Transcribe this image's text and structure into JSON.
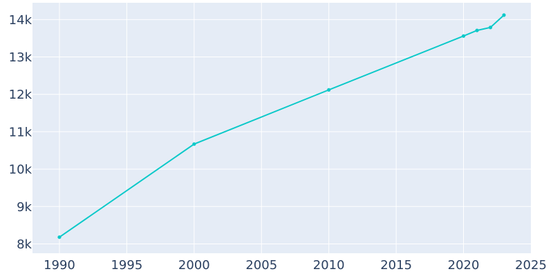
{
  "chart_data": {
    "type": "line",
    "title": "",
    "xlabel": "",
    "ylabel": "",
    "grid": true,
    "xlim": [
      1988,
      2025
    ],
    "ylim": [
      7750,
      14450
    ],
    "x_ticks": [
      1990,
      1995,
      2000,
      2005,
      2010,
      2015,
      2020,
      2025
    ],
    "x_tick_labels": [
      "1990",
      "1995",
      "2000",
      "2005",
      "2010",
      "2015",
      "2020",
      "2025"
    ],
    "y_ticks": [
      8000,
      9000,
      10000,
      11000,
      12000,
      13000,
      14000
    ],
    "y_tick_labels": [
      "8k",
      "9k",
      "10k",
      "11k",
      "12k",
      "13k",
      "14k"
    ],
    "series": [
      {
        "color": "#0cc9c9",
        "x": [
          1990,
          2000,
          2010,
          2020,
          2021,
          2022,
          2023
        ],
        "values": [
          8180,
          10670,
          12120,
          13560,
          13710,
          13790,
          14120
        ]
      }
    ]
  },
  "colors": {
    "plot_background": "#e5ecf6",
    "grid": "#ffffff",
    "tick_text": "#2a3f5f"
  }
}
